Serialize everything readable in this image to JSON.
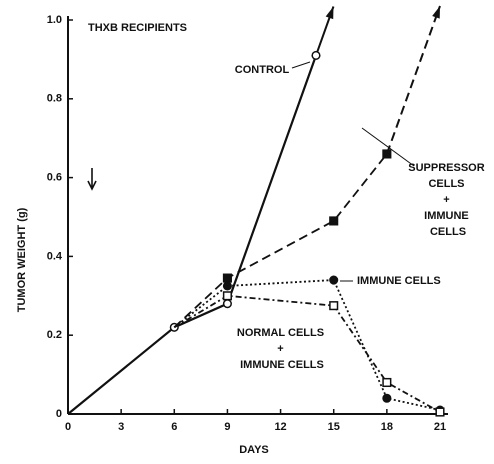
{
  "chart_data": {
    "type": "line",
    "title": "THXB RECIPIENTS",
    "xlabel": "DAYS",
    "ylabel": "TUMOR WEIGHT (g)",
    "xlim": [
      0,
      21
    ],
    "xticks": [
      0,
      3,
      6,
      9,
      12,
      15,
      18,
      21
    ],
    "ylim": [
      0,
      1
    ],
    "yticks": [
      0,
      0.2,
      0.4,
      0.6,
      0.8,
      {
        "value": 1,
        "label": "1.0"
      }
    ],
    "series": [
      {
        "name": "CONTROL",
        "color": "#111111",
        "line_style": "solid",
        "marker": "circle-open",
        "x": [
          0,
          6,
          9,
          14
        ],
        "values": [
          0,
          0.22,
          0.28,
          0.91
        ]
      },
      {
        "name": "SUPPRESSOR CELLS + IMMUNE CELLS",
        "color": "#111111",
        "line_style": "dashed",
        "marker": "square-filled",
        "x": [
          6,
          9,
          15,
          18
        ],
        "values": [
          0.22,
          0.345,
          0.49,
          0.66
        ]
      },
      {
        "name": "IMMUNE CELLS",
        "color": "#111111",
        "line_style": "dotted",
        "marker": "circle-filled",
        "x": [
          6,
          9,
          15,
          18,
          21
        ],
        "values": [
          0.22,
          0.325,
          0.34,
          0.04,
          0.01
        ]
      },
      {
        "name": "NORMAL CELLS + IMMUNE CELLS",
        "color": "#111111",
        "line_style": "dashdot",
        "marker": "square-open",
        "x": [
          6,
          9,
          15,
          18,
          21
        ],
        "values": [
          0.22,
          0.3,
          0.275,
          0.08,
          0.005
        ]
      }
    ]
  }
}
